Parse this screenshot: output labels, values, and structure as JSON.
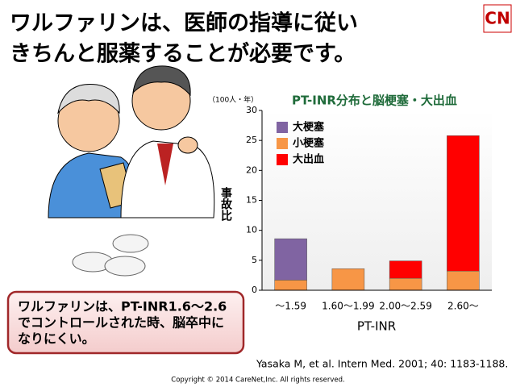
{
  "header": {
    "title_lines": [
      "ワルファリンは、医師の指導に従い",
      "きちんと服薬することが必要です。"
    ]
  },
  "logo": "CN",
  "callout": {
    "lines": [
      "ワルファリンは、PT-INR1.6～2.6",
      "でコントロールされた時、脳卒中に",
      "なりにくい。"
    ]
  },
  "citation": "Yasaka M, et al. Intern Med. 2001; 40: 1183-1188.",
  "copyright": "Copyright © 2014 CareNet,Inc. All rights reserved.",
  "chart_data": {
    "type": "stacked_bar",
    "title": "PT-INR分布と脳梗塞・大出血",
    "y_unit": "（100人・年）",
    "y_label": "事故比",
    "x_label": "PT-INR",
    "categories": [
      "～1.59",
      "1.60～1.99",
      "2.00～2.59",
      "2.60～"
    ],
    "series": [
      {
        "name": "小梗塞",
        "color": "#f79646",
        "values": [
          1.7,
          3.6,
          2.0,
          3.2
        ]
      },
      {
        "name": "大梗塞",
        "color": "#8064a2",
        "values": [
          6.9,
          0,
          0,
          0
        ]
      },
      {
        "name": "大出血",
        "color": "#ff0000",
        "values": [
          0,
          0,
          2.9,
          22.6
        ]
      }
    ],
    "ylim": [
      0,
      30
    ],
    "yticks": [
      0,
      5,
      10,
      15,
      20,
      25,
      30
    ],
    "grid": false,
    "legend": "upper left"
  }
}
